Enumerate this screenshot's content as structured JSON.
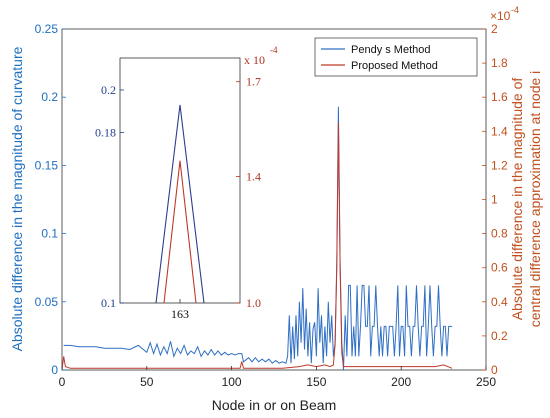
{
  "chart_data": {
    "type": "line",
    "xlabel": "Node in or on Beam",
    "ylabel_left": "Absolute difference in the magnitude of curvature",
    "ylabel_right_line1": "Absolute difference in the magnitude of",
    "ylabel_right_line2": "central difference approximation at node i",
    "right_exponent": "×10",
    "right_exponent_power": "-4",
    "xlim": [
      0,
      250
    ],
    "ylim_left": [
      0,
      0.25
    ],
    "ylim_right": [
      0,
      2
    ],
    "x_ticks": [
      "0",
      "50",
      "100",
      "150",
      "200",
      "250"
    ],
    "y_left_ticks": [
      "0",
      "0.05",
      "0.1",
      "0.15",
      "0.2",
      "0.25"
    ],
    "y_right_ticks": [
      "0",
      "0.2",
      "0.4",
      "0.6",
      "0.8",
      "1",
      "1.2",
      "1.4",
      "1.6",
      "1.8",
      "2"
    ],
    "legend_position": "top-right",
    "series": [
      {
        "name": "Pendy s Method",
        "axis": "left",
        "color": "#2f6fc4",
        "points": [
          [
            1,
            0.018
          ],
          [
            5,
            0.018
          ],
          [
            10,
            0.017
          ],
          [
            15,
            0.017
          ],
          [
            20,
            0.017
          ],
          [
            25,
            0.016
          ],
          [
            30,
            0.016
          ],
          [
            35,
            0.016
          ],
          [
            40,
            0.015
          ],
          [
            45,
            0.018
          ],
          [
            50,
            0.013
          ],
          [
            52,
            0.02
          ],
          [
            54,
            0.012
          ],
          [
            56,
            0.019
          ],
          [
            58,
            0.011
          ],
          [
            60,
            0.017
          ],
          [
            62,
            0.012
          ],
          [
            64,
            0.021
          ],
          [
            66,
            0.01
          ],
          [
            68,
            0.016
          ],
          [
            70,
            0.012
          ],
          [
            72,
            0.018
          ],
          [
            74,
            0.011
          ],
          [
            76,
            0.014
          ],
          [
            78,
            0.012
          ],
          [
            80,
            0.017
          ],
          [
            82,
            0.01
          ],
          [
            84,
            0.014
          ],
          [
            86,
            0.011
          ],
          [
            88,
            0.015
          ],
          [
            90,
            0.011
          ],
          [
            92,
            0.014
          ],
          [
            94,
            0.011
          ],
          [
            96,
            0.013
          ],
          [
            98,
            0.011
          ],
          [
            100,
            0.012
          ],
          [
            102,
            0.011
          ],
          [
            104,
            0.012
          ],
          [
            106,
            0.012
          ],
          [
            107,
            0.006
          ],
          [
            110,
            0.009
          ],
          [
            112,
            0.006
          ],
          [
            114,
            0.009
          ],
          [
            116,
            0.006
          ],
          [
            118,
            0.008
          ],
          [
            120,
            0.006
          ],
          [
            122,
            0.008
          ],
          [
            124,
            0.005
          ],
          [
            126,
            0.007
          ],
          [
            128,
            0.005
          ],
          [
            130,
            0.006
          ],
          [
            132,
            0.005
          ],
          [
            133,
            0.01
          ],
          [
            134,
            0.04
          ],
          [
            135,
            0.005
          ],
          [
            136,
            0.032
          ],
          [
            137,
            0.008
          ],
          [
            138,
            0.04
          ],
          [
            139,
            0.01
          ],
          [
            140,
            0.05
          ],
          [
            141,
            0.02
          ],
          [
            142,
            0.06
          ],
          [
            143,
            0.015
          ],
          [
            144,
            0.045
          ],
          [
            145,
            0.01
          ],
          [
            146,
            0.035
          ],
          [
            147,
            0.005
          ],
          [
            148,
            0.03
          ],
          [
            149,
            0.035
          ],
          [
            150,
            0.01
          ],
          [
            151,
            0.06
          ],
          [
            152,
            0.02
          ],
          [
            153,
            0.04
          ],
          [
            154,
            0.005
          ],
          [
            155,
            0.032
          ],
          [
            156,
            0.01
          ],
          [
            157,
            0.05
          ],
          [
            158,
            0.02
          ],
          [
            159,
            0.04
          ],
          [
            160,
            0.01
          ],
          [
            161,
            0.02
          ],
          [
            162,
            0.08
          ],
          [
            163,
            0.193
          ],
          [
            164,
            0.08
          ],
          [
            165,
            0.02
          ],
          [
            166,
            0.0
          ],
          [
            167,
            0.04
          ],
          [
            168,
            0.01
          ],
          [
            169,
            0.062
          ],
          [
            170,
            0.062
          ],
          [
            171,
            0.01
          ],
          [
            172,
            0.032
          ],
          [
            173,
            0.01
          ],
          [
            174,
            0.062
          ],
          [
            175,
            0.01
          ],
          [
            176,
            0.032
          ],
          [
            177,
            0.062
          ],
          [
            178,
            0.062
          ],
          [
            179,
            0.032
          ],
          [
            180,
            0.032
          ],
          [
            181,
            0.062
          ],
          [
            182,
            0.01
          ],
          [
            183,
            0.032
          ],
          [
            184,
            0.032
          ],
          [
            185,
            0.062
          ],
          [
            186,
            0.032
          ],
          [
            187,
            0.01
          ],
          [
            188,
            0.032
          ],
          [
            189,
            0.01
          ],
          [
            190,
            0.032
          ],
          [
            191,
            0.032
          ],
          [
            192,
            0.01
          ],
          [
            193,
            0.032
          ],
          [
            194,
            0.032
          ],
          [
            195,
            0.032
          ],
          [
            196,
            0.01
          ],
          [
            197,
            0.032
          ],
          [
            198,
            0.062
          ],
          [
            199,
            0.01
          ],
          [
            200,
            0.032
          ],
          [
            201,
            0.032
          ],
          [
            202,
            0.01
          ],
          [
            203,
            0.062
          ],
          [
            204,
            0.032
          ],
          [
            205,
            0.032
          ],
          [
            206,
            0.01
          ],
          [
            207,
            0.032
          ],
          [
            208,
            0.032
          ],
          [
            209,
            0.062
          ],
          [
            210,
            0.032
          ],
          [
            211,
            0.01
          ],
          [
            212,
            0.032
          ],
          [
            213,
            0.032
          ],
          [
            214,
            0.062
          ],
          [
            215,
            0.01
          ],
          [
            216,
            0.032
          ],
          [
            217,
            0.062
          ],
          [
            218,
            0.032
          ],
          [
            219,
            0.01
          ],
          [
            220,
            0.032
          ],
          [
            221,
            0.032
          ],
          [
            222,
            0.062
          ],
          [
            223,
            0.032
          ],
          [
            224,
            0.01
          ],
          [
            225,
            0.032
          ],
          [
            226,
            0.032
          ],
          [
            227,
            0.01
          ],
          [
            228,
            0.032
          ],
          [
            229,
            0.032
          ],
          [
            230,
            0.032
          ]
        ]
      },
      {
        "name": "Proposed Method",
        "axis": "right",
        "color": "#c0392b",
        "points": [
          [
            0,
            0.0
          ],
          [
            1,
            0.08
          ],
          [
            2,
            0.02
          ],
          [
            5,
            0.01
          ],
          [
            10,
            0.01
          ],
          [
            20,
            0.01
          ],
          [
            30,
            0.01
          ],
          [
            40,
            0.01
          ],
          [
            50,
            0.01
          ],
          [
            60,
            0.01
          ],
          [
            70,
            0.01
          ],
          [
            80,
            0.01
          ],
          [
            90,
            0.01
          ],
          [
            100,
            0.01
          ],
          [
            105,
            0.01
          ],
          [
            106,
            0.05
          ],
          [
            107,
            0.01
          ],
          [
            110,
            0.01
          ],
          [
            120,
            0.01
          ],
          [
            130,
            0.01
          ],
          [
            140,
            0.02
          ],
          [
            145,
            0.03
          ],
          [
            150,
            0.02
          ],
          [
            155,
            0.03
          ],
          [
            158,
            0.02
          ],
          [
            160,
            0.03
          ],
          [
            161,
            0.15
          ],
          [
            162,
            0.6
          ],
          [
            163,
            1.45
          ],
          [
            164,
            0.6
          ],
          [
            165,
            0.1
          ],
          [
            166,
            0.02
          ],
          [
            170,
            0.02
          ],
          [
            180,
            0.02
          ],
          [
            190,
            0.02
          ],
          [
            200,
            0.02
          ],
          [
            210,
            0.02
          ],
          [
            220,
            0.02
          ],
          [
            225,
            0.03
          ],
          [
            230,
            0.01
          ]
        ]
      }
    ],
    "inset": {
      "x_ticks": [
        "163"
      ],
      "left_ticks": [
        "0.1",
        "0.18",
        "0.2"
      ],
      "right_ticks": [
        "1.0",
        "1.4",
        "1.7"
      ],
      "right_exponent": "x 10",
      "right_exponent_power": "-4",
      "ylim_left": [
        0.1,
        0.215
      ],
      "xlim": [
        160,
        166
      ],
      "peak_left": 0.193,
      "peak_right": 1.45,
      "ylim_right": [
        1.0,
        1.775
      ]
    }
  }
}
